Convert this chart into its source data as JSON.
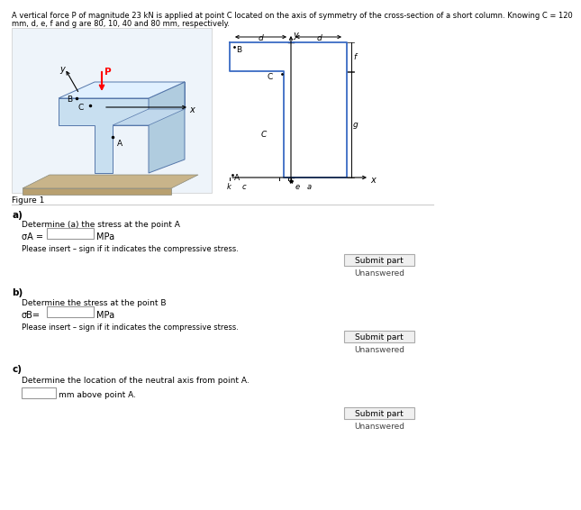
{
  "title_text": "A vertical force P of magnitude 23 kN is applied at point C located on the axis of symmetry of the cross-section of a short column. Knowing C = 120",
  "title_text2": "mm, d, e, f and g are 80, 10, 40 and 80 mm, respectively.",
  "figure_label": "Figure 1",
  "part_a_label": "a)",
  "part_a_question": "Determine (a) the stress at the point A",
  "part_a_formula": "σA =",
  "part_a_unit": "MPa",
  "part_a_hint": "Please insert – sign if it indicates the compressive stress.",
  "part_b_label": "b)",
  "part_b_question": "Determine the stress at the point B",
  "part_b_formula": "σB=",
  "part_b_unit": "MPa",
  "part_b_hint": "Please insert – sign if it indicates the compressive stress.",
  "part_c_label": "c)",
  "part_c_question": "Determine the location of the neutral axis from point A.",
  "part_c_unit": "mm above point A.",
  "submit_text": "Submit part",
  "unanswered_text": "Unanswered",
  "bg_color": "#ffffff",
  "button_color": "#f0f0f0",
  "button_border": "#aaaaaa",
  "diagram_blue": "#3a6bc4",
  "separator_color": "#cccccc",
  "3d_bg": "#ddeeff",
  "3d_front": "#c8dff0",
  "3d_right": "#b0ccdf",
  "3d_top": "#e0f0ff",
  "3d_base": "#c8b48a",
  "3d_base2": "#b8a070"
}
